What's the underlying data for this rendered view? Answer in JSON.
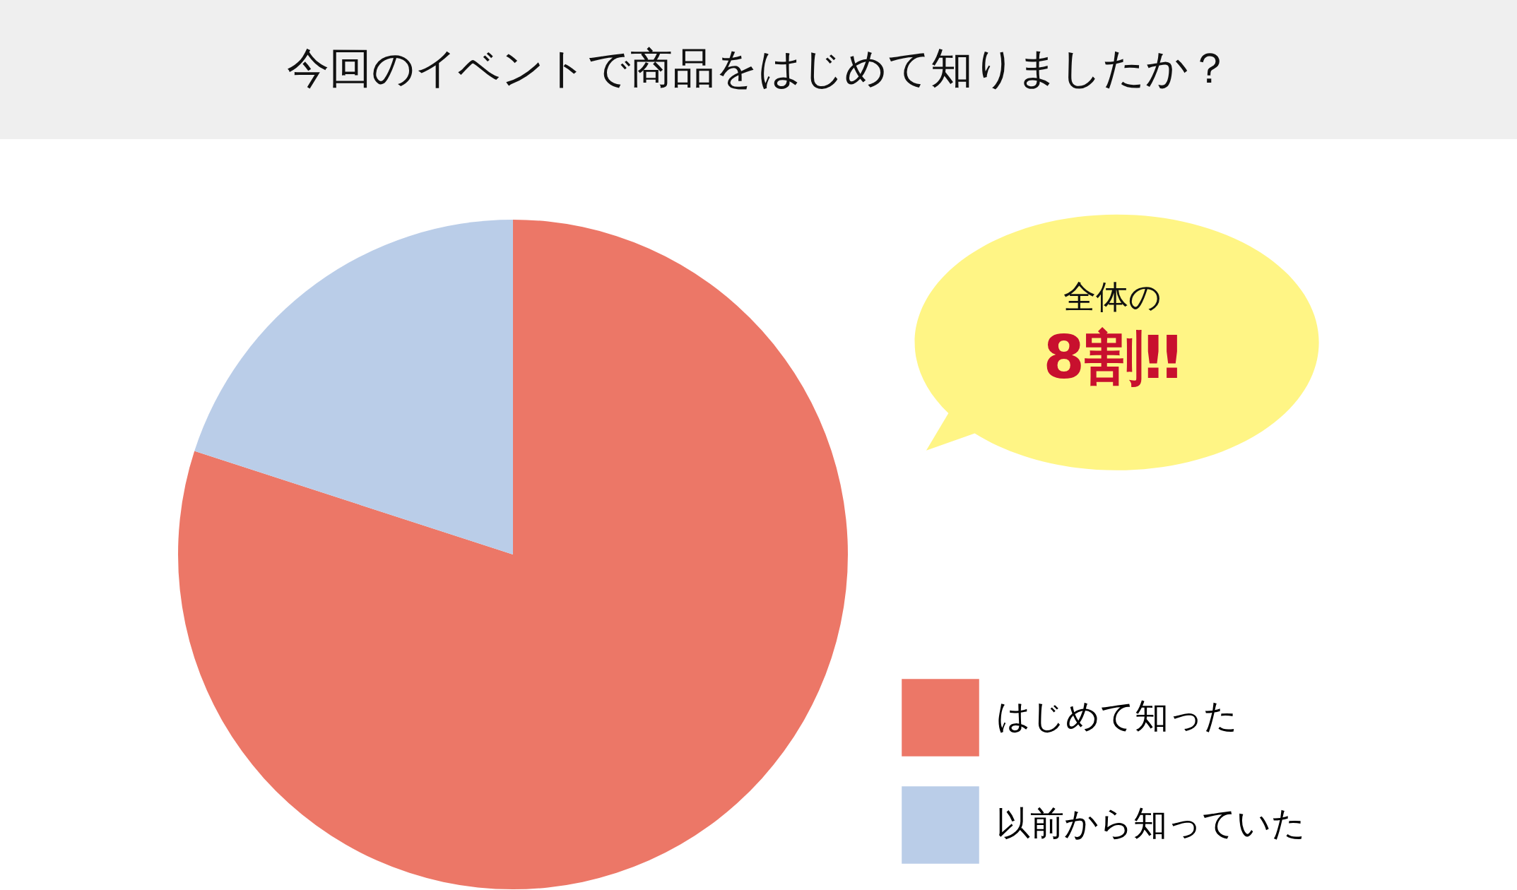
{
  "chart_data": {
    "type": "pie",
    "title": "今回のイベントで商品をはじめて知りましたか？",
    "categories": [
      "はじめて知った",
      "以前から知っていた"
    ],
    "values": [
      80,
      20
    ],
    "colors": [
      "#ec7767",
      "#bacde8"
    ],
    "legend": "bottom right",
    "annotations": [
      "全体の",
      "8割‼"
    ]
  }
}
